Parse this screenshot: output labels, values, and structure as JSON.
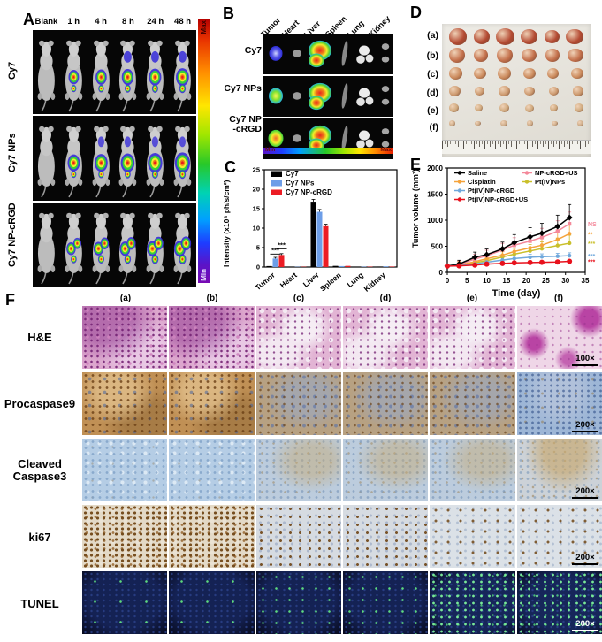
{
  "figure": {
    "panel_a": {
      "label": "A",
      "timepoints": [
        "Blank",
        "1 h",
        "4 h",
        "8 h",
        "24 h",
        "48 h"
      ],
      "row_labels": [
        "Cy7",
        "Cy7 NPs",
        "Cy7 NP-cRGD"
      ],
      "colorbar_max": "Max",
      "colorbar_min": "Min"
    },
    "panel_b": {
      "label": "B",
      "organs": [
        "Tumor",
        "Heart",
        "Liver",
        "Spleen",
        "Lung",
        "Kidney"
      ],
      "row_labels": [
        [
          "Cy7"
        ],
        [
          "Cy7 NPs"
        ],
        [
          "Cy7 NP",
          "-cRGD"
        ]
      ],
      "bar_min": "Min",
      "bar_max": "Max"
    },
    "panel_c": {
      "label": "C"
    },
    "panel_d": {
      "label": "D",
      "rows": [
        {
          "label": "(a)",
          "size": 19,
          "color": "#b44a32"
        },
        {
          "label": "(b)",
          "size": 17,
          "color": "#c4714c"
        },
        {
          "label": "(c)",
          "size": 14,
          "color": "#cb8a5c"
        },
        {
          "label": "(d)",
          "size": 12,
          "color": "#cc996e"
        },
        {
          "label": "(e)",
          "size": 10,
          "color": "#cfa87c"
        },
        {
          "label": "(f)",
          "size": 7,
          "color": "#cdab88"
        }
      ]
    },
    "panel_e": {
      "label": "E"
    },
    "panel_f": {
      "label": "F",
      "columns": [
        "(a)",
        "(b)",
        "(c)",
        "(d)",
        "(e)",
        "(f)"
      ],
      "rows": [
        {
          "name": "H&E",
          "display_lines": [
            "H&E"
          ],
          "mag": "100×",
          "type": "he",
          "variants": [
            0,
            0,
            1,
            1,
            1,
            2
          ],
          "mag_light": false
        },
        {
          "name": "Procaspase9",
          "display_lines": [
            "Procaspase9"
          ],
          "mag": "200×",
          "type": "pro",
          "variants": [
            0,
            0,
            1,
            1,
            1,
            2
          ],
          "mag_light": false
        },
        {
          "name": "Cleaved Caspase3",
          "display_lines": [
            "Cleaved",
            "Caspase3"
          ],
          "mag": "200×",
          "type": "cc3",
          "variants": [
            0,
            0,
            1,
            1,
            1,
            2
          ],
          "mag_light": false
        },
        {
          "name": "ki67",
          "display_lines": [
            "ki67"
          ],
          "mag": "200×",
          "type": "ki",
          "variants": [
            0,
            0,
            1,
            1,
            2,
            2
          ],
          "mag_light": false
        },
        {
          "name": "TUNEL",
          "display_lines": [
            "TUNEL"
          ],
          "mag": "200×",
          "type": "tunel",
          "variants": [
            0,
            0,
            1,
            1,
            2,
            2
          ],
          "mag_light": true
        }
      ]
    }
  },
  "chart_data": [
    {
      "id": "organ_intensity",
      "type": "bar",
      "title": "",
      "categories": [
        "Tumor",
        "Heart",
        "Liver",
        "Spleen",
        "Lung",
        "Kidney"
      ],
      "series": [
        {
          "name": "Cy7",
          "color": "#000000",
          "values": [
            0.25,
            0.08,
            16.8,
            0.3,
            0.1,
            0.12
          ]
        },
        {
          "name": "Cy7 NPs",
          "color": "#6d9ee8",
          "values": [
            2.2,
            0.08,
            14.2,
            0.25,
            0.1,
            0.18
          ]
        },
        {
          "name": "Cy7 NP-cRGD",
          "color": "#ec1c24",
          "values": [
            3.1,
            0.08,
            10.5,
            0.3,
            0.1,
            0.12
          ]
        }
      ],
      "errors": [
        [
          0.1,
          0.05,
          0.6,
          0.1,
          0.05,
          0.05
        ],
        [
          0.3,
          0.05,
          0.6,
          0.1,
          0.05,
          0.05
        ],
        [
          0.35,
          0.05,
          0.5,
          0.1,
          0.05,
          0.05
        ]
      ],
      "xlabel": "",
      "ylabel": "Intensity (x10⁸ ph/s/cm²)",
      "ylim": [
        0,
        25
      ],
      "yticks": [
        0,
        5,
        10,
        15,
        20,
        25
      ],
      "legend_position": "top-left",
      "annotations": [
        {
          "text": "***",
          "group": "Tumor",
          "over": "Cy7 NPs"
        },
        {
          "text": "***",
          "group": "Tumor",
          "over": "Cy7 NP-cRGD"
        }
      ]
    },
    {
      "id": "tumor_volume",
      "type": "line",
      "x": [
        0,
        3,
        7,
        10,
        14,
        17,
        21,
        24,
        28,
        31
      ],
      "series": [
        {
          "name": "Saline",
          "color": "#000000",
          "marker": "diamond",
          "sig": "",
          "values": [
            120,
            160,
            290,
            340,
            450,
            570,
            680,
            750,
            880,
            1050
          ]
        },
        {
          "name": "NP-cRGD+US",
          "color": "#f4889a",
          "marker": "square",
          "sig": "NS",
          "values": [
            120,
            150,
            255,
            320,
            430,
            520,
            600,
            670,
            790,
            930
          ]
        },
        {
          "name": "Cisplatin",
          "color": "#f5a33b",
          "marker": "circle",
          "sig": "**",
          "values": [
            120,
            140,
            205,
            260,
            330,
            400,
            470,
            520,
            630,
            740
          ]
        },
        {
          "name": "Pt(IV)NPs",
          "color": "#c9bf2a",
          "marker": "circle",
          "sig": "***",
          "values": [
            120,
            138,
            185,
            225,
            295,
            350,
            410,
            455,
            515,
            560
          ]
        },
        {
          "name": "Pt(IV)NP-cRGD",
          "color": "#6fa8dc",
          "marker": "circle",
          "sig": "***",
          "values": [
            120,
            130,
            160,
            195,
            235,
            265,
            290,
            300,
            310,
            320
          ]
        },
        {
          "name": "Pt(IV)NP-cRGD+US",
          "color": "#e8111c",
          "marker": "bigcircle",
          "sig": "***",
          "values": [
            120,
            125,
            140,
            158,
            172,
            182,
            188,
            192,
            200,
            212
          ]
        }
      ],
      "xlabel": "Time (day)",
      "ylabel": "Tumor volume (mm³)",
      "xlim": [
        0,
        35
      ],
      "ylim": [
        0,
        2000
      ],
      "xticks": [
        0,
        5,
        10,
        15,
        20,
        25,
        30,
        35
      ],
      "yticks": [
        0,
        500,
        1000,
        1500,
        2000
      ],
      "legend_position": "top-left"
    }
  ]
}
